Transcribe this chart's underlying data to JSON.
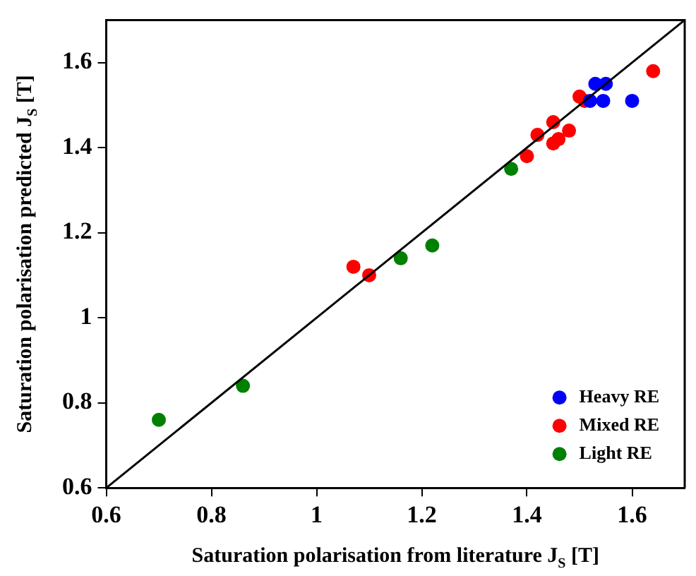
{
  "chart_data": {
    "type": "scatter",
    "xlabel": "Saturation polarisation from literature J$_{S}$ [T]",
    "ylabel": "Saturation polarisation predicted J$_{S}$ [T]",
    "xlim": [
      0.6,
      1.7
    ],
    "ylim": [
      0.6,
      1.7
    ],
    "xticks": [
      0.6,
      0.8,
      1,
      1.2,
      1.4,
      1.6
    ],
    "yticks": [
      0.6,
      0.8,
      1,
      1.2,
      1.4,
      1.6
    ],
    "grid": false,
    "legend": "bottom right",
    "marker": "circle",
    "series": [
      {
        "type": "line",
        "color": "#000000",
        "x": [
          0.6,
          1.7
        ],
        "values": [
          0.6,
          1.7
        ],
        "marker": "none"
      },
      {
        "name": "Heavy RE",
        "color": "#0000ff",
        "x": [
          1.53,
          1.55,
          1.52,
          1.545,
          1.6
        ],
        "values": [
          1.55,
          1.55,
          1.51,
          1.51,
          1.51
        ]
      },
      {
        "name": "Mixed RE",
        "color": "#ff0000",
        "x": [
          1.07,
          1.1,
          1.4,
          1.42,
          1.45,
          1.45,
          1.46,
          1.48,
          1.5,
          1.51,
          1.54,
          1.64
        ],
        "values": [
          1.12,
          1.1,
          1.38,
          1.43,
          1.46,
          1.41,
          1.42,
          1.44,
          1.52,
          1.51,
          null,
          1.58
        ]
      },
      {
        "name": "Light RE",
        "color": "#008000",
        "x": [
          0.7,
          0.86,
          1.16,
          1.22,
          1.37
        ],
        "values": [
          0.76,
          0.84,
          1.14,
          1.17,
          1.35
        ]
      }
    ]
  }
}
